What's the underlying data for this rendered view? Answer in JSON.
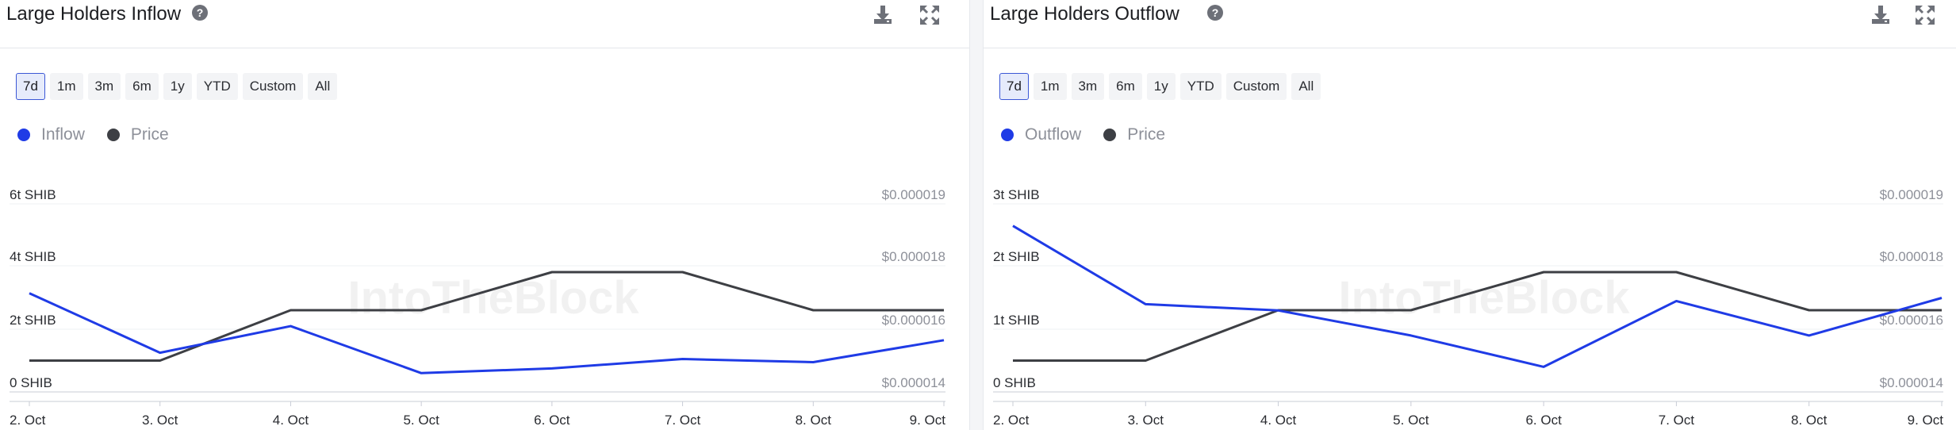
{
  "panels": [
    {
      "title": "Large Holders Inflow",
      "ranges": [
        "7d",
        "1m",
        "3m",
        "6m",
        "1y",
        "YTD",
        "Custom",
        "All"
      ],
      "active_range": "7d",
      "legend": [
        {
          "label": "Inflow",
          "color": "#1f3be6"
        },
        {
          "label": "Price",
          "color": "#3d3f44"
        }
      ],
      "watermark": "IntoTheBlock"
    },
    {
      "title": "Large Holders Outflow",
      "ranges": [
        "7d",
        "1m",
        "3m",
        "6m",
        "1y",
        "YTD",
        "Custom",
        "All"
      ],
      "active_range": "7d",
      "legend": [
        {
          "label": "Outflow",
          "color": "#1f3be6"
        },
        {
          "label": "Price",
          "color": "#3d3f44"
        }
      ],
      "watermark": "IntoTheBlock"
    }
  ],
  "icons": {
    "help": "help-circle-icon",
    "download": "download-icon",
    "expand": "expand-icon"
  },
  "chart_data": [
    {
      "type": "line",
      "title": "Large Holders Inflow",
      "categories": [
        "2. Oct",
        "3. Oct",
        "4. Oct",
        "5. Oct",
        "6. Oct",
        "7. Oct",
        "8. Oct",
        "9. Oct"
      ],
      "left_axis": {
        "ticks": [
          "0 SHIB",
          "2t SHIB",
          "4t SHIB",
          "6t SHIB"
        ],
        "ylim": [
          0,
          6
        ],
        "unit": "t SHIB"
      },
      "right_axis": {
        "ticks": [
          "$0.000014",
          "$0.000016",
          "$0.000018",
          "$0.000019"
        ],
        "ylim": [
          1.4e-05,
          1.9e-05
        ]
      },
      "series": [
        {
          "name": "Inflow",
          "axis": "left",
          "color": "#1f3be6",
          "values": [
            3.15,
            1.25,
            2.1,
            0.6,
            0.75,
            1.05,
            0.95,
            1.65
          ]
        },
        {
          "name": "Price",
          "axis": "right",
          "color": "#3d3f44",
          "values": [
            1.5e-05,
            1.5e-05,
            1.66e-05,
            1.66e-05,
            1.78e-05,
            1.78e-05,
            1.66e-05,
            1.66e-05
          ]
        }
      ]
    },
    {
      "type": "line",
      "title": "Large Holders Outflow",
      "categories": [
        "2. Oct",
        "3. Oct",
        "4. Oct",
        "5. Oct",
        "6. Oct",
        "7. Oct",
        "8. Oct",
        "9. Oct"
      ],
      "left_axis": {
        "ticks": [
          "0 SHIB",
          "1t SHIB",
          "2t SHIB",
          "3t SHIB"
        ],
        "ylim": [
          0,
          3
        ],
        "unit": "t SHIB"
      },
      "right_axis": {
        "ticks": [
          "$0.000014",
          "$0.000016",
          "$0.000018",
          "$0.000019"
        ],
        "ylim": [
          1.4e-05,
          1.9e-05
        ]
      },
      "series": [
        {
          "name": "Outflow",
          "axis": "left",
          "color": "#1f3be6",
          "values": [
            2.65,
            1.4,
            1.3,
            0.9,
            0.4,
            1.45,
            0.9,
            1.5
          ]
        },
        {
          "name": "Price",
          "axis": "right",
          "color": "#3d3f44",
          "values": [
            1.5e-05,
            1.5e-05,
            1.66e-05,
            1.66e-05,
            1.78e-05,
            1.78e-05,
            1.66e-05,
            1.66e-05
          ]
        }
      ]
    }
  ]
}
